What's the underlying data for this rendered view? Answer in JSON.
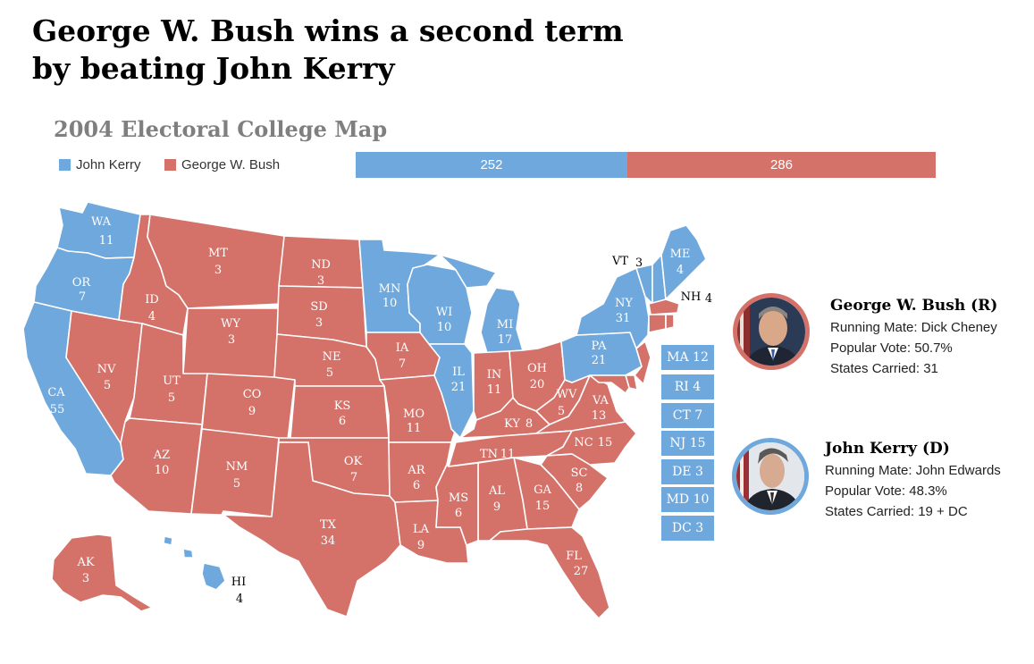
{
  "headline": {
    "line1": "George W. Bush wins a second term",
    "line2": "by beating John Kerry"
  },
  "subtitle": "2004 Electoral College Map",
  "legend": [
    {
      "label": "John Kerry",
      "color": "#6fa8dc"
    },
    {
      "label": "George W. Bush",
      "color": "#d4726a"
    }
  ],
  "electoral_bar": {
    "kerry": 252,
    "bush": 286,
    "kerry_label": "252",
    "bush_label": "286"
  },
  "colors": {
    "kerry": "#6fa8dc",
    "bush": "#d4726a"
  },
  "states": {
    "WA": {
      "abbr": "WA",
      "votes": "11",
      "winner": "kerry"
    },
    "OR": {
      "abbr": "OR",
      "votes": "7",
      "winner": "kerry"
    },
    "CA": {
      "abbr": "CA",
      "votes": "55",
      "winner": "kerry"
    },
    "ID": {
      "abbr": "ID",
      "votes": "4",
      "winner": "bush"
    },
    "NV": {
      "abbr": "NV",
      "votes": "5",
      "winner": "bush"
    },
    "MT": {
      "abbr": "MT",
      "votes": "3",
      "winner": "bush"
    },
    "WY": {
      "abbr": "WY",
      "votes": "3",
      "winner": "bush"
    },
    "UT": {
      "abbr": "UT",
      "votes": "5",
      "winner": "bush"
    },
    "AZ": {
      "abbr": "AZ",
      "votes": "10",
      "winner": "bush"
    },
    "CO": {
      "abbr": "CO",
      "votes": "9",
      "winner": "bush"
    },
    "NM": {
      "abbr": "NM",
      "votes": "5",
      "winner": "bush"
    },
    "ND": {
      "abbr": "ND",
      "votes": "3",
      "winner": "bush"
    },
    "SD": {
      "abbr": "SD",
      "votes": "3",
      "winner": "bush"
    },
    "NE": {
      "abbr": "NE",
      "votes": "5",
      "winner": "bush"
    },
    "KS": {
      "abbr": "KS",
      "votes": "6",
      "winner": "bush"
    },
    "OK": {
      "abbr": "OK",
      "votes": "7",
      "winner": "bush"
    },
    "TX": {
      "abbr": "TX",
      "votes": "34",
      "winner": "bush"
    },
    "MN": {
      "abbr": "MN",
      "votes": "10",
      "winner": "kerry"
    },
    "IA": {
      "abbr": "IA",
      "votes": "7",
      "winner": "bush"
    },
    "MO": {
      "abbr": "MO",
      "votes": "11",
      "winner": "bush"
    },
    "AR": {
      "abbr": "AR",
      "votes": "6",
      "winner": "bush"
    },
    "LA": {
      "abbr": "LA",
      "votes": "9",
      "winner": "bush"
    },
    "WI": {
      "abbr": "WI",
      "votes": "10",
      "winner": "kerry"
    },
    "IL": {
      "abbr": "IL",
      "votes": "21",
      "winner": "kerry"
    },
    "MI": {
      "abbr": "MI",
      "votes": "17",
      "winner": "kerry"
    },
    "IN": {
      "abbr": "IN",
      "votes": "11",
      "winner": "bush"
    },
    "OH": {
      "abbr": "OH",
      "votes": "20",
      "winner": "bush"
    },
    "KY": {
      "abbr": "KY",
      "votes": "8",
      "winner": "bush"
    },
    "TN": {
      "abbr": "TN",
      "votes": "11",
      "winner": "bush"
    },
    "MS": {
      "abbr": "MS",
      "votes": "6",
      "winner": "bush"
    },
    "AL": {
      "abbr": "AL",
      "votes": "9",
      "winner": "bush"
    },
    "GA": {
      "abbr": "GA",
      "votes": "15",
      "winner": "bush"
    },
    "FL": {
      "abbr": "FL",
      "votes": "27",
      "winner": "bush"
    },
    "SC": {
      "abbr": "SC",
      "votes": "8",
      "winner": "bush"
    },
    "NC": {
      "abbr": "NC",
      "votes": "15",
      "winner": "bush"
    },
    "VA": {
      "abbr": "VA",
      "votes": "13",
      "winner": "bush"
    },
    "WV": {
      "abbr": "WV",
      "votes": "5",
      "winner": "bush"
    },
    "PA": {
      "abbr": "PA",
      "votes": "21",
      "winner": "kerry"
    },
    "NY": {
      "abbr": "NY",
      "votes": "31",
      "winner": "kerry"
    },
    "VT": {
      "abbr": "VT",
      "votes": "3",
      "winner": "kerry"
    },
    "NH": {
      "abbr": "NH",
      "votes": "4",
      "winner": "kerry"
    },
    "ME": {
      "abbr": "ME",
      "votes": "4",
      "winner": "kerry"
    },
    "AK": {
      "abbr": "AK",
      "votes": "3",
      "winner": "bush"
    },
    "HI": {
      "abbr": "HI",
      "votes": "4",
      "winner": "kerry"
    }
  },
  "northeast_boxes": [
    {
      "abbr": "MA",
      "votes": "12"
    },
    {
      "abbr": "RI",
      "votes": "4"
    },
    {
      "abbr": "CT",
      "votes": "7"
    },
    {
      "abbr": "NJ",
      "votes": "15"
    },
    {
      "abbr": "DE",
      "votes": "3"
    },
    {
      "abbr": "MD",
      "votes": "10"
    },
    {
      "abbr": "DC",
      "votes": "3"
    }
  ],
  "candidates": {
    "bush": {
      "name": "George W. Bush (R)",
      "running_mate": "Running Mate: Dick Cheney",
      "popular_vote": "Popular Vote:  50.7%",
      "states_carried": "States Carried: 31",
      "ring_color": "#d4726a"
    },
    "kerry": {
      "name": "John Kerry (D)",
      "running_mate": "Running Mate: John Edwards",
      "popular_vote": "Popular Vote:  48.3%",
      "states_carried": "States Carried: 19 + DC",
      "ring_color": "#6fa8dc"
    }
  }
}
